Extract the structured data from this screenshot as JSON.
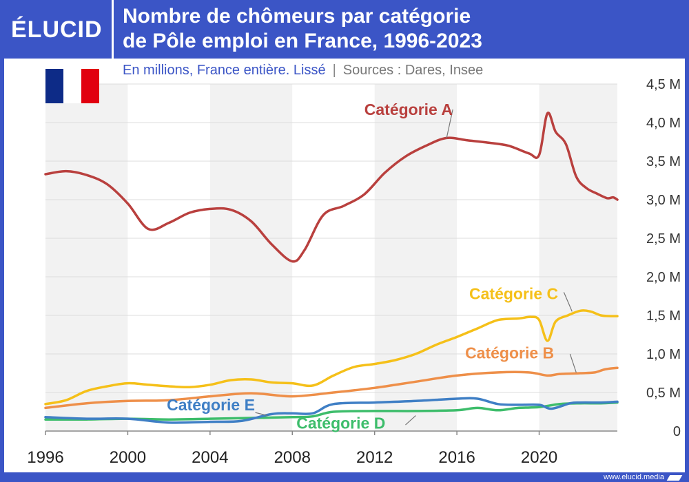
{
  "brand": {
    "logo": "ÉLUCID",
    "url": "www.elucid.media",
    "header_color": "#3b55c6"
  },
  "flag": {
    "name": "france-flag",
    "colors": [
      "#0d2b87",
      "#ffffff",
      "#e1000f"
    ]
  },
  "chart_data": {
    "type": "line",
    "title": "Nombre de chômeurs par catégorie de Pôle emploi en France, 1996-2023",
    "title_lines": [
      "Nombre de chômeurs par catégorie",
      "de Pôle emploi en France, 1996-2023"
    ],
    "subtitle": "En millions, France entière. Lissé",
    "source": "Sources : Dares, Insee",
    "xlim": [
      1996,
      2023.8
    ],
    "ylim": [
      0,
      4.5
    ],
    "x_ticks": [
      1996,
      2000,
      2004,
      2008,
      2012,
      2016,
      2020
    ],
    "x_tick_labels": [
      "1996",
      "2000",
      "2004",
      "2008",
      "2012",
      "2016",
      "2020"
    ],
    "y_ticks": [
      0,
      0.5,
      1.0,
      1.5,
      2.0,
      2.5,
      3.0,
      3.5,
      4.0,
      4.5
    ],
    "y_tick_labels": [
      "0",
      "0,5 M",
      "1,0 M",
      "1,5 M",
      "2,0 M",
      "2,5 M",
      "3,0 M",
      "3,5 M",
      "4,0 M",
      "4,5 M"
    ],
    "grid": true,
    "background_bands": "alternating 4-year shaded bands",
    "series": [
      {
        "name": "Catégorie A",
        "color": "#b9403e",
        "points": [
          [
            1996,
            3.33
          ],
          [
            1997,
            3.37
          ],
          [
            1998,
            3.32
          ],
          [
            1999,
            3.2
          ],
          [
            2000,
            2.95
          ],
          [
            2001,
            2.62
          ],
          [
            2002,
            2.7
          ],
          [
            2003,
            2.83
          ],
          [
            2004,
            2.88
          ],
          [
            2005,
            2.87
          ],
          [
            2006,
            2.72
          ],
          [
            2007,
            2.42
          ],
          [
            2008,
            2.2
          ],
          [
            2008.6,
            2.35
          ],
          [
            2009.5,
            2.8
          ],
          [
            2010.5,
            2.92
          ],
          [
            2011.5,
            3.07
          ],
          [
            2012.5,
            3.35
          ],
          [
            2013.5,
            3.56
          ],
          [
            2014.5,
            3.7
          ],
          [
            2015.5,
            3.8
          ],
          [
            2016.5,
            3.77
          ],
          [
            2017.5,
            3.74
          ],
          [
            2018.5,
            3.7
          ],
          [
            2019.5,
            3.6
          ],
          [
            2020,
            3.58
          ],
          [
            2020.4,
            4.12
          ],
          [
            2020.8,
            3.88
          ],
          [
            2021.3,
            3.72
          ],
          [
            2021.8,
            3.3
          ],
          [
            2022.3,
            3.15
          ],
          [
            2022.8,
            3.08
          ],
          [
            2023.3,
            3.02
          ],
          [
            2023.6,
            3.03
          ],
          [
            2023.8,
            3.0
          ]
        ]
      },
      {
        "name": "Catégorie B",
        "color": "#ee8f49",
        "points": [
          [
            1996,
            0.3
          ],
          [
            1998,
            0.36
          ],
          [
            2000,
            0.39
          ],
          [
            2002,
            0.4
          ],
          [
            2004,
            0.45
          ],
          [
            2006,
            0.49
          ],
          [
            2008,
            0.45
          ],
          [
            2010,
            0.5
          ],
          [
            2012,
            0.56
          ],
          [
            2014,
            0.64
          ],
          [
            2016,
            0.72
          ],
          [
            2018,
            0.76
          ],
          [
            2019.5,
            0.76
          ],
          [
            2020.4,
            0.72
          ],
          [
            2021,
            0.74
          ],
          [
            2022,
            0.75
          ],
          [
            2022.7,
            0.76
          ],
          [
            2023.2,
            0.8
          ],
          [
            2023.8,
            0.82
          ]
        ]
      },
      {
        "name": "Catégorie C",
        "color": "#f5c019",
        "points": [
          [
            1996,
            0.35
          ],
          [
            1997,
            0.4
          ],
          [
            1998,
            0.52
          ],
          [
            1999,
            0.58
          ],
          [
            2000,
            0.62
          ],
          [
            2001,
            0.6
          ],
          [
            2002,
            0.58
          ],
          [
            2003,
            0.57
          ],
          [
            2004,
            0.6
          ],
          [
            2005,
            0.66
          ],
          [
            2006,
            0.67
          ],
          [
            2007,
            0.63
          ],
          [
            2008,
            0.62
          ],
          [
            2009,
            0.59
          ],
          [
            2010,
            0.72
          ],
          [
            2011,
            0.83
          ],
          [
            2012,
            0.87
          ],
          [
            2013,
            0.92
          ],
          [
            2014,
            1.0
          ],
          [
            2015,
            1.12
          ],
          [
            2016,
            1.22
          ],
          [
            2017,
            1.33
          ],
          [
            2018,
            1.44
          ],
          [
            2019,
            1.46
          ],
          [
            2019.6,
            1.48
          ],
          [
            2020,
            1.44
          ],
          [
            2020.4,
            1.17
          ],
          [
            2020.8,
            1.42
          ],
          [
            2021.4,
            1.5
          ],
          [
            2022,
            1.56
          ],
          [
            2022.5,
            1.55
          ],
          [
            2023,
            1.5
          ],
          [
            2023.5,
            1.49
          ],
          [
            2023.8,
            1.49
          ]
        ]
      },
      {
        "name": "Catégorie D",
        "color": "#3dbd6b",
        "points": [
          [
            1996,
            0.15
          ],
          [
            1998,
            0.15
          ],
          [
            2000,
            0.16
          ],
          [
            2002,
            0.15
          ],
          [
            2004,
            0.16
          ],
          [
            2006,
            0.17
          ],
          [
            2008,
            0.18
          ],
          [
            2009,
            0.19
          ],
          [
            2010,
            0.25
          ],
          [
            2012,
            0.26
          ],
          [
            2014,
            0.26
          ],
          [
            2016,
            0.27
          ],
          [
            2017,
            0.3
          ],
          [
            2018,
            0.27
          ],
          [
            2019,
            0.3
          ],
          [
            2020,
            0.31
          ],
          [
            2021,
            0.35
          ],
          [
            2022,
            0.36
          ],
          [
            2023,
            0.36
          ],
          [
            2023.8,
            0.37
          ]
        ]
      },
      {
        "name": "Catégorie E",
        "color": "#3f7fc5",
        "points": [
          [
            1996,
            0.18
          ],
          [
            1998,
            0.16
          ],
          [
            2000,
            0.16
          ],
          [
            2002,
            0.11
          ],
          [
            2004,
            0.12
          ],
          [
            2005.5,
            0.13
          ],
          [
            2007,
            0.22
          ],
          [
            2008,
            0.23
          ],
          [
            2009,
            0.23
          ],
          [
            2010,
            0.35
          ],
          [
            2012,
            0.37
          ],
          [
            2014,
            0.39
          ],
          [
            2016,
            0.42
          ],
          [
            2017,
            0.42
          ],
          [
            2018,
            0.35
          ],
          [
            2019,
            0.34
          ],
          [
            2020,
            0.34
          ],
          [
            2020.6,
            0.29
          ],
          [
            2021.5,
            0.36
          ],
          [
            2022,
            0.37
          ],
          [
            2023,
            0.37
          ],
          [
            2023.8,
            0.38
          ]
        ]
      }
    ],
    "annotations": [
      {
        "series": "Catégorie A",
        "text": "Catégorie A",
        "color": "#b9403e",
        "at": [
          2011.5,
          4.1
        ],
        "leader_from": [
          2015.8,
          4.17
        ],
        "leader_to": [
          2015.5,
          3.8
        ]
      },
      {
        "series": "Catégorie C",
        "text": "Catégorie C",
        "color": "#f5c019",
        "at": [
          2016.6,
          1.71
        ],
        "leader_from": [
          2021.2,
          1.8
        ],
        "leader_to": [
          2021.6,
          1.55
        ]
      },
      {
        "series": "Catégorie B",
        "text": "Catégorie B",
        "color": "#ee8f49",
        "at": [
          2016.4,
          0.94
        ],
        "leader_from": [
          2021.5,
          1.0
        ],
        "leader_to": [
          2021.8,
          0.76
        ]
      },
      {
        "series": "Catégorie E",
        "text": "Catégorie E",
        "color": "#3f7fc5",
        "at": [
          2001.9,
          0.27
        ],
        "leader_from": [
          2006.2,
          0.24
        ],
        "leader_to": [
          2006.8,
          0.2
        ]
      },
      {
        "series": "Catégorie D",
        "text": "Catégorie D",
        "color": "#3dbd6b",
        "at": [
          2008.2,
          0.03
        ],
        "leader_from": [
          2013.5,
          0.08
        ],
        "leader_to": [
          2014.0,
          0.2
        ]
      }
    ]
  }
}
